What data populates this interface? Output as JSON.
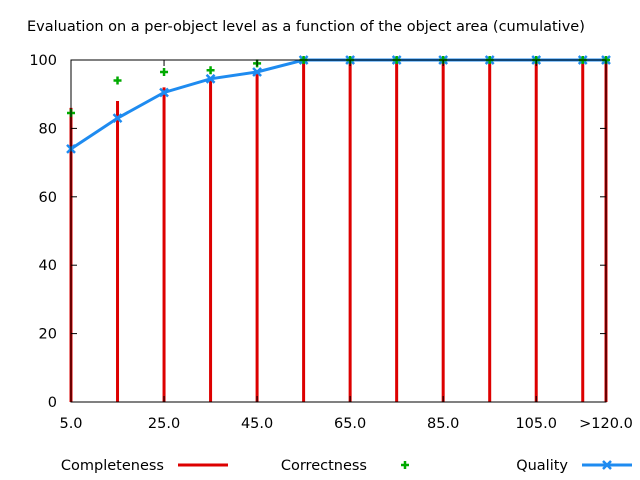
{
  "chart_data": {
    "type": "bar",
    "title": "Evaluation on a per-object level as a function of the object area (cumulative)",
    "xlabel": "",
    "ylabel": "",
    "x": [
      5,
      15,
      25,
      35,
      45,
      55,
      65,
      75,
      85,
      95,
      105,
      115,
      120
    ],
    "x_tick_values": [
      5,
      25,
      45,
      65,
      85,
      105,
      120
    ],
    "x_tick_labels": [
      "5.0",
      "25.0",
      "45.0",
      "65.0",
      "85.0",
      "105.0",
      ">120.0"
    ],
    "y_ticks": [
      0,
      20,
      40,
      60,
      80,
      100
    ],
    "xlim": [
      5,
      120
    ],
    "ylim": [
      0,
      100
    ],
    "grid": false,
    "legend_position": "bottom",
    "series": [
      {
        "name": "Completeness",
        "style": "impulse",
        "color": "#dd0000",
        "values": [
          86,
          88,
          92,
          95,
          97,
          100,
          100,
          100,
          100,
          100,
          100,
          100,
          100
        ]
      },
      {
        "name": "Correctness",
        "style": "points",
        "color": "#00aa00",
        "values": [
          84.5,
          94,
          96.5,
          97,
          99,
          100,
          100,
          100,
          100,
          100,
          100,
          100,
          100
        ]
      },
      {
        "name": "Quality",
        "style": "linespoints",
        "color": "#1e8bf0",
        "values": [
          74,
          83,
          90.5,
          94.5,
          96.5,
          100,
          100,
          100,
          100,
          100,
          100,
          100,
          100
        ]
      }
    ]
  }
}
